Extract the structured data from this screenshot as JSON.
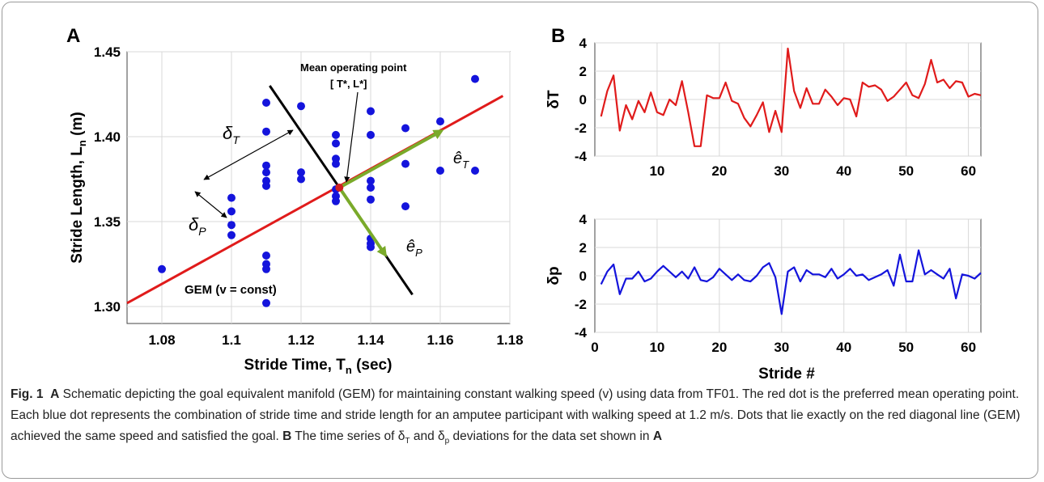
{
  "colors": {
    "gem_line": "#e01b1b",
    "manifold_line": "#000000",
    "unit_vectors": "#7aaa2a",
    "points": "#1414dc",
    "operating_point": "#d02020",
    "series_dt": "#e01b1b",
    "series_dp": "#1414dc",
    "grid": "#d8d8d8"
  },
  "panel_a": {
    "label": "A",
    "annotations": {
      "mean_line1": "Mean operating point",
      "mean_line2": "[ T*, L*]",
      "delta_t": "δ",
      "delta_t_sub": "T",
      "delta_p": "δ",
      "delta_p_sub": "P",
      "e_t": "ê",
      "e_t_sub": "T",
      "e_p": "ê",
      "e_p_sub": "P",
      "gem": "GEM (v = const)"
    }
  },
  "panel_b": {
    "label": "B"
  },
  "chart_data": [
    {
      "type": "scatter",
      "xlabel": "Stride Time, T",
      "xlabel_sub": "n",
      "xlabel_unit": " (sec)",
      "ylabel": "Stride Length, L",
      "ylabel_sub": "n",
      "ylabel_unit": " (m)",
      "xlim": [
        1.07,
        1.18
      ],
      "ylim": [
        1.29,
        1.45
      ],
      "xticks": [
        "1.08",
        "1.1",
        "1.12",
        "1.14",
        "1.16",
        "1.18"
      ],
      "yticks": [
        "1.30",
        "1.35",
        "1.40",
        "1.45"
      ],
      "grid": true,
      "points": [
        [
          1.08,
          1.322
        ],
        [
          1.1,
          1.364
        ],
        [
          1.1,
          1.356
        ],
        [
          1.1,
          1.348
        ],
        [
          1.1,
          1.342
        ],
        [
          1.11,
          1.42
        ],
        [
          1.11,
          1.403
        ],
        [
          1.11,
          1.383
        ],
        [
          1.11,
          1.379
        ],
        [
          1.11,
          1.374
        ],
        [
          1.11,
          1.371
        ],
        [
          1.11,
          1.33
        ],
        [
          1.11,
          1.325
        ],
        [
          1.11,
          1.322
        ],
        [
          1.11,
          1.302
        ],
        [
          1.12,
          1.418
        ],
        [
          1.12,
          1.379
        ],
        [
          1.12,
          1.375
        ],
        [
          1.13,
          1.401
        ],
        [
          1.13,
          1.396
        ],
        [
          1.13,
          1.387
        ],
        [
          1.13,
          1.384
        ],
        [
          1.13,
          1.369
        ],
        [
          1.13,
          1.365
        ],
        [
          1.13,
          1.362
        ],
        [
          1.14,
          1.415
        ],
        [
          1.14,
          1.401
        ],
        [
          1.14,
          1.374
        ],
        [
          1.14,
          1.37
        ],
        [
          1.14,
          1.363
        ],
        [
          1.14,
          1.34
        ],
        [
          1.14,
          1.337
        ],
        [
          1.14,
          1.335
        ],
        [
          1.15,
          1.405
        ],
        [
          1.15,
          1.384
        ],
        [
          1.15,
          1.359
        ],
        [
          1.16,
          1.409
        ],
        [
          1.16,
          1.38
        ],
        [
          1.17,
          1.434
        ],
        [
          1.17,
          1.38
        ]
      ],
      "operating_point": [
        1.131,
        1.37
      ],
      "gem_line": [
        [
          1.07,
          1.302
        ],
        [
          1.178,
          1.424
        ]
      ],
      "normal_line": [
        [
          1.111,
          1.43
        ],
        [
          1.152,
          1.307
        ]
      ],
      "e_t_vector": [
        [
          1.131,
          1.37
        ],
        [
          1.16,
          1.403
        ]
      ],
      "e_p_vector": [
        [
          1.131,
          1.37
        ],
        [
          1.144,
          1.331
        ]
      ]
    },
    {
      "type": "line",
      "ylabel": "δT",
      "xlim": [
        0,
        62
      ],
      "ylim": [
        -4,
        4
      ],
      "xticks": [
        "10",
        "20",
        "30",
        "40",
        "50",
        "60"
      ],
      "yticks": [
        "4",
        "2",
        "0",
        "-2",
        "-4"
      ],
      "grid": true,
      "x": [
        1,
        2,
        3,
        4,
        5,
        6,
        7,
        8,
        9,
        10,
        11,
        12,
        13,
        14,
        15,
        16,
        17,
        18,
        19,
        20,
        21,
        22,
        23,
        24,
        25,
        26,
        27,
        28,
        29,
        30,
        31,
        32,
        33,
        34,
        35,
        36,
        37,
        38,
        39,
        40,
        41,
        42,
        43,
        44,
        45,
        46,
        47,
        48,
        49,
        50,
        51,
        52,
        53,
        54,
        55,
        56,
        57,
        58,
        59,
        60,
        61,
        62
      ],
      "y": [
        -1.2,
        0.6,
        1.7,
        -2.2,
        -0.4,
        -1.4,
        -0.1,
        -0.9,
        0.5,
        -0.9,
        -1.1,
        0.0,
        -0.4,
        1.3,
        -0.9,
        -3.3,
        -3.3,
        0.3,
        0.1,
        0.1,
        1.2,
        -0.1,
        -0.3,
        -1.3,
        -1.9,
        -1.1,
        -0.2,
        -2.3,
        -0.8,
        -2.3,
        3.6,
        0.6,
        -0.6,
        0.8,
        -0.3,
        -0.3,
        0.7,
        0.2,
        -0.4,
        0.1,
        0.0,
        -1.2,
        1.2,
        0.9,
        1.0,
        0.7,
        -0.1,
        0.2,
        0.7,
        1.2,
        0.3,
        0.1,
        1.1,
        2.8,
        1.2,
        1.4,
        0.8,
        1.3,
        1.2,
        0.2,
        0.4,
        0.3
      ]
    },
    {
      "type": "line",
      "xlabel": "Stride #",
      "ylabel": "δp",
      "xlim": [
        0,
        62
      ],
      "ylim": [
        -4,
        4
      ],
      "xticks": [
        "0",
        "10",
        "20",
        "30",
        "40",
        "50",
        "60"
      ],
      "yticks": [
        "4",
        "2",
        "0",
        "-2",
        "-4"
      ],
      "grid": true,
      "x": [
        1,
        2,
        3,
        4,
        5,
        6,
        7,
        8,
        9,
        10,
        11,
        12,
        13,
        14,
        15,
        16,
        17,
        18,
        19,
        20,
        21,
        22,
        23,
        24,
        25,
        26,
        27,
        28,
        29,
        30,
        31,
        32,
        33,
        34,
        35,
        36,
        37,
        38,
        39,
        40,
        41,
        42,
        43,
        44,
        45,
        46,
        47,
        48,
        49,
        50,
        51,
        52,
        53,
        54,
        55,
        56,
        57,
        58,
        59,
        60,
        61,
        62
      ],
      "y": [
        -0.6,
        0.3,
        0.8,
        -1.3,
        -0.2,
        -0.2,
        0.3,
        -0.4,
        -0.2,
        0.3,
        0.7,
        0.3,
        -0.1,
        0.3,
        -0.2,
        0.6,
        -0.3,
        -0.4,
        -0.1,
        0.5,
        0.1,
        -0.3,
        0.1,
        -0.3,
        -0.4,
        0.0,
        0.6,
        0.9,
        -0.1,
        -2.7,
        0.3,
        0.6,
        -0.4,
        0.4,
        0.1,
        0.1,
        -0.1,
        0.5,
        -0.2,
        0.1,
        0.5,
        0.0,
        0.1,
        -0.3,
        -0.1,
        0.1,
        0.4,
        -0.7,
        1.5,
        -0.4,
        -0.4,
        1.8,
        0.1,
        0.4,
        0.1,
        -0.2,
        0.5,
        -1.6,
        0.1,
        0.0,
        -0.2,
        0.2
      ]
    }
  ],
  "caption": {
    "fig_label": "Fig. 1",
    "a_label": "A",
    "a_text": " Schematic depicting the goal equivalent manifold (GEM) for maintaining constant walking speed (v) using data from TF01. The red dot is the preferred mean operating point. Each blue dot represents the combination of stride time and stride length for an amputee participant with walking speed at 1.2 m/s. Dots that lie exactly on the red diagonal line (GEM) achieved the same speed and satisfied the goal. ",
    "b_label": "B",
    "b_text_1": " The time series of δ",
    "b_sub_1": "T",
    "b_text_2": " and δ",
    "b_sub_2": "p",
    "b_text_3": " deviations for the data set shown in ",
    "b_ref": "A"
  }
}
